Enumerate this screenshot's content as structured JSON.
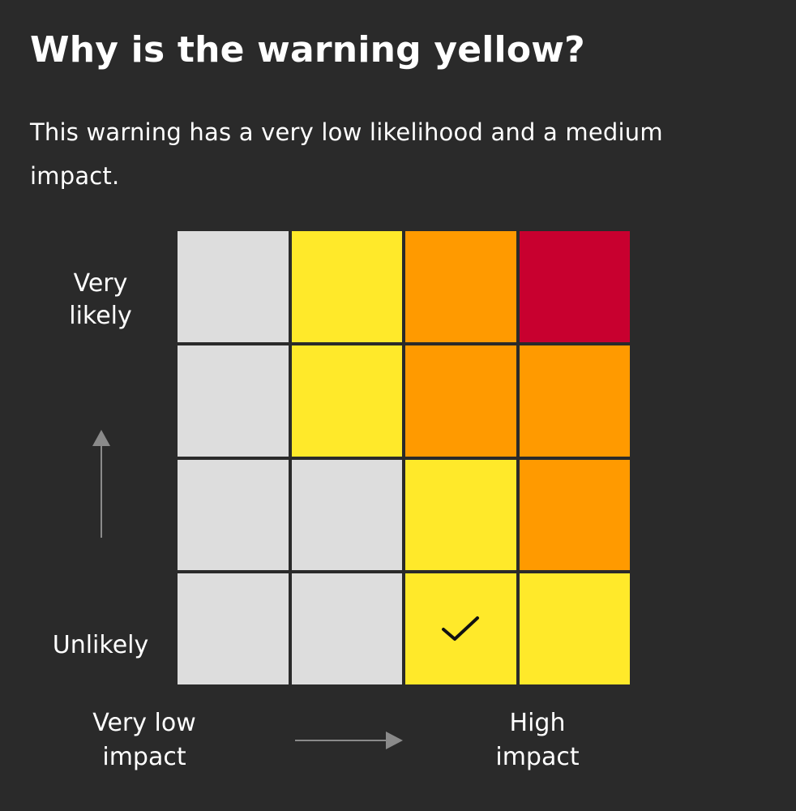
{
  "title": "Why is the warning yellow?",
  "subtitle": "This warning has a very low likelihood and a medium impact.",
  "axes": {
    "likelihood_high_label": "Very\nlikely",
    "likelihood_low_label": "Unlikely",
    "impact_low_label": "Very low\nimpact",
    "impact_high_label": "High\nimpact",
    "arrow_color": "#8a8a8a"
  },
  "colors": {
    "background": "#2a2a2a",
    "none": "#dddddd",
    "yellow": "#ffe92a",
    "amber": "#ff9a00",
    "red": "#c8002f"
  },
  "matrix": {
    "rows_top_to_bottom": [
      [
        "none",
        "yellow",
        "amber",
        "red"
      ],
      [
        "none",
        "yellow",
        "amber",
        "amber"
      ],
      [
        "none",
        "none",
        "yellow",
        "amber"
      ],
      [
        "none",
        "none",
        "yellow",
        "yellow"
      ]
    ],
    "selected": {
      "row_from_top": 3,
      "column": 2,
      "icon": "check-icon"
    }
  }
}
